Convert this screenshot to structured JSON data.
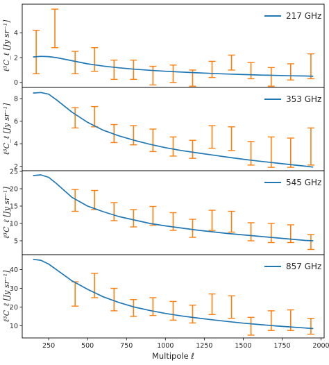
{
  "colors": {
    "model_line": "#1f77b4",
    "errorbar": "#ff7f0e",
    "axes": "#000000"
  },
  "chart_data": [
    {
      "type": "line",
      "legend": "217 GHz",
      "legend_position": "top-right",
      "ylabel": "ℓ³C_ℓ [Jy sr⁻¹]",
      "xlabel": "",
      "xlim": [
        80,
        2020
      ],
      "ylim": [
        -0.4,
        6.3
      ],
      "yticks": [
        0,
        2,
        4
      ],
      "grid": false,
      "model_x": [
        150,
        200,
        250,
        300,
        400,
        500,
        600,
        700,
        800,
        900,
        1000,
        1100,
        1200,
        1300,
        1400,
        1500,
        1600,
        1700,
        1800,
        1900,
        1950
      ],
      "model_y": [
        2.05,
        2.1,
        2.08,
        2.0,
        1.75,
        1.5,
        1.32,
        1.18,
        1.07,
        0.98,
        0.9,
        0.84,
        0.78,
        0.73,
        0.68,
        0.64,
        0.6,
        0.57,
        0.54,
        0.52,
        0.5
      ],
      "errorbars": [
        {
          "x": 170,
          "low": 0.7,
          "high": 4.2
        },
        {
          "x": 290,
          "low": 2.8,
          "high": 5.9
        },
        {
          "x": 420,
          "low": 0.7,
          "high": 2.5
        },
        {
          "x": 545,
          "low": 0.9,
          "high": 2.8
        },
        {
          "x": 670,
          "low": 0.25,
          "high": 1.8
        },
        {
          "x": 795,
          "low": 0.25,
          "high": 1.8
        },
        {
          "x": 920,
          "low": -0.2,
          "high": 1.3
        },
        {
          "x": 1050,
          "low": 0.0,
          "high": 1.4
        },
        {
          "x": 1175,
          "low": -0.3,
          "high": 1.0
        },
        {
          "x": 1300,
          "low": 0.4,
          "high": 1.7
        },
        {
          "x": 1425,
          "low": 1.0,
          "high": 2.2
        },
        {
          "x": 1550,
          "low": 0.3,
          "high": 1.6
        },
        {
          "x": 1680,
          "low": -0.3,
          "high": 1.2
        },
        {
          "x": 1805,
          "low": 0.2,
          "high": 1.5
        },
        {
          "x": 1935,
          "low": 0.3,
          "high": 2.3
        }
      ]
    },
    {
      "type": "line",
      "legend": "353 GHz",
      "legend_position": "top-right",
      "ylabel": "ℓ³C_ℓ [Jy sr⁻¹]",
      "xlabel": "",
      "xlim": [
        80,
        2020
      ],
      "ylim": [
        1.6,
        9.0
      ],
      "yticks": [
        2,
        4,
        6,
        8
      ],
      "grid": false,
      "model_x": [
        150,
        200,
        250,
        300,
        400,
        500,
        600,
        700,
        800,
        900,
        1000,
        1100,
        1200,
        1300,
        1400,
        1500,
        1600,
        1700,
        1800,
        1900,
        1950
      ],
      "model_y": [
        8.5,
        8.55,
        8.4,
        7.9,
        6.8,
        5.9,
        5.2,
        4.7,
        4.3,
        3.95,
        3.65,
        3.4,
        3.2,
        3.0,
        2.8,
        2.62,
        2.45,
        2.3,
        2.15,
        2.0,
        1.92
      ],
      "errorbars": [
        {
          "x": 420,
          "low": 5.4,
          "high": 7.2
        },
        {
          "x": 545,
          "low": 5.5,
          "high": 7.3
        },
        {
          "x": 670,
          "low": 4.1,
          "high": 5.7
        },
        {
          "x": 795,
          "low": 3.9,
          "high": 5.6
        },
        {
          "x": 920,
          "low": 3.3,
          "high": 5.3
        },
        {
          "x": 1050,
          "low": 2.9,
          "high": 4.6
        },
        {
          "x": 1175,
          "low": 2.7,
          "high": 4.3
        },
        {
          "x": 1300,
          "low": 3.6,
          "high": 5.6
        },
        {
          "x": 1425,
          "low": 3.4,
          "high": 5.5
        },
        {
          "x": 1550,
          "low": 2.1,
          "high": 4.2
        },
        {
          "x": 1680,
          "low": 1.9,
          "high": 4.6
        },
        {
          "x": 1805,
          "low": 1.9,
          "high": 4.5
        },
        {
          "x": 1935,
          "low": 2.1,
          "high": 5.4
        }
      ]
    },
    {
      "type": "line",
      "legend": "545 GHz",
      "legend_position": "top-right",
      "ylabel": "ℓ³C_ℓ [Jy sr⁻¹]",
      "xlabel": "",
      "xlim": [
        80,
        2020
      ],
      "ylim": [
        1.0,
        25.2
      ],
      "yticks": [
        5,
        10,
        15,
        20,
        25
      ],
      "grid": false,
      "model_x": [
        150,
        200,
        250,
        300,
        400,
        500,
        600,
        700,
        800,
        900,
        1000,
        1100,
        1200,
        1300,
        1400,
        1500,
        1600,
        1700,
        1800,
        1900,
        1950
      ],
      "model_y": [
        23.8,
        24.0,
        23.3,
        21.5,
        17.5,
        15.0,
        13.4,
        12.0,
        11.0,
        10.0,
        9.3,
        8.7,
        8.1,
        7.6,
        7.1,
        6.7,
        6.3,
        5.9,
        5.5,
        5.1,
        5.0
      ],
      "errorbars": [
        {
          "x": 420,
          "low": 13.5,
          "high": 19.8
        },
        {
          "x": 545,
          "low": 14.0,
          "high": 19.5
        },
        {
          "x": 670,
          "low": 10.8,
          "high": 16.0
        },
        {
          "x": 795,
          "low": 9.0,
          "high": 14.0
        },
        {
          "x": 920,
          "low": 9.5,
          "high": 14.9
        },
        {
          "x": 1050,
          "low": 8.0,
          "high": 13.1
        },
        {
          "x": 1175,
          "low": 6.0,
          "high": 11.2
        },
        {
          "x": 1300,
          "low": 8.0,
          "high": 13.8
        },
        {
          "x": 1425,
          "low": 7.5,
          "high": 13.5
        },
        {
          "x": 1550,
          "low": 5.0,
          "high": 10.2
        },
        {
          "x": 1680,
          "low": 4.5,
          "high": 10.0
        },
        {
          "x": 1805,
          "low": 4.5,
          "high": 9.6
        },
        {
          "x": 1935,
          "low": 2.5,
          "high": 6.8
        }
      ]
    },
    {
      "type": "line",
      "legend": "857 GHz",
      "legend_position": "top-right",
      "ylabel": "ℓ³C_ℓ [Jy sr⁻¹]",
      "xlabel": "Multipole ℓ",
      "xlim": [
        80,
        2020
      ],
      "ylim": [
        3.5,
        48.0
      ],
      "yticks": [
        10,
        20,
        30,
        40
      ],
      "xticks": [
        250,
        500,
        750,
        1000,
        1250,
        1500,
        1750,
        2000
      ],
      "grid": false,
      "model_x": [
        150,
        200,
        250,
        300,
        400,
        500,
        600,
        700,
        800,
        900,
        1000,
        1100,
        1200,
        1300,
        1400,
        1500,
        1600,
        1700,
        1800,
        1900,
        1950
      ],
      "model_y": [
        45.5,
        45.0,
        43.0,
        40.0,
        34.0,
        29.5,
        25.5,
        22.5,
        20.0,
        18.2,
        16.6,
        15.3,
        14.2,
        13.2,
        12.3,
        11.4,
        10.7,
        10.0,
        9.4,
        8.8,
        8.5
      ],
      "errorbars": [
        {
          "x": 420,
          "low": 20.5,
          "high": 33.5
        },
        {
          "x": 545,
          "low": 25.0,
          "high": 38.0
        },
        {
          "x": 670,
          "low": 18.0,
          "high": 30.0
        },
        {
          "x": 795,
          "low": 15.0,
          "high": 24.0
        },
        {
          "x": 920,
          "low": 15.5,
          "high": 25.0
        },
        {
          "x": 1050,
          "low": 13.0,
          "high": 23.0
        },
        {
          "x": 1175,
          "low": 11.5,
          "high": 21.0
        },
        {
          "x": 1300,
          "low": 16.0,
          "high": 27.0
        },
        {
          "x": 1425,
          "low": 14.0,
          "high": 26.0
        },
        {
          "x": 1550,
          "low": 5.0,
          "high": 14.5
        },
        {
          "x": 1680,
          "low": 7.5,
          "high": 18.0
        },
        {
          "x": 1805,
          "low": 7.5,
          "high": 18.5
        },
        {
          "x": 1935,
          "low": 5.5,
          "high": 14.0
        }
      ]
    }
  ]
}
